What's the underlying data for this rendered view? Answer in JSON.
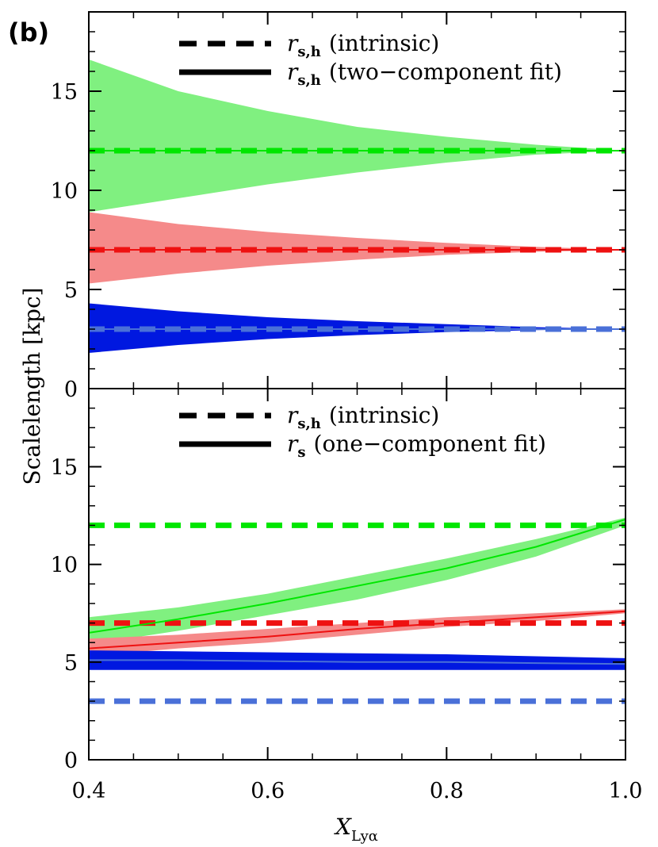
{
  "chart_data": {
    "type": "area",
    "ylabel": "Scalelength [kpc]",
    "xlabel": {
      "main": "X",
      "sub": "Lyα"
    },
    "xlim": [
      0.4,
      1.0
    ],
    "xticks": [
      "0.4",
      "0.6",
      "0.8",
      "1.0"
    ],
    "xtick_values": [
      0.4,
      0.6,
      0.8,
      1.0
    ],
    "colors": {
      "green": "#00e600",
      "red": "#ee1111",
      "blue": "#4a70d8",
      "green_fill": "#80f080",
      "red_fill": "#f58a8a",
      "blue_fill": "#0018e0"
    },
    "panels": [
      {
        "panel_label": "(b)",
        "ylim": [
          0,
          19
        ],
        "yticks": [
          "0",
          "5",
          "10",
          "15"
        ],
        "ytick_values": [
          0,
          5,
          10,
          15
        ],
        "legend": [
          {
            "style": "dashed",
            "symbol": "r",
            "sub": "s,h",
            "text": "(intrinsic)"
          },
          {
            "style": "solid",
            "symbol": "r",
            "sub": "s,h",
            "text": "(two−component fit)"
          }
        ],
        "series": [
          {
            "name": "green",
            "intrinsic": 12,
            "x": [
              0.4,
              0.5,
              0.6,
              0.7,
              0.8,
              0.9,
              1.0
            ],
            "fit": [
              12,
              12,
              12,
              12,
              12,
              12,
              12
            ],
            "lower": [
              8.9,
              9.6,
              10.3,
              10.9,
              11.4,
              11.8,
              12.0
            ],
            "upper": [
              16.6,
              15.0,
              14.0,
              13.2,
              12.7,
              12.3,
              12.0
            ]
          },
          {
            "name": "red",
            "intrinsic": 7,
            "x": [
              0.4,
              0.5,
              0.6,
              0.7,
              0.8,
              0.9,
              1.0
            ],
            "fit": [
              7,
              7,
              7,
              7,
              7,
              7,
              7
            ],
            "lower": [
              5.3,
              5.8,
              6.2,
              6.5,
              6.75,
              6.9,
              7.0
            ],
            "upper": [
              8.9,
              8.3,
              7.9,
              7.6,
              7.35,
              7.15,
              7.0
            ]
          },
          {
            "name": "blue",
            "intrinsic": 3,
            "x": [
              0.4,
              0.5,
              0.6,
              0.7,
              0.8,
              0.9,
              1.0
            ],
            "fit": [
              3,
              3,
              3,
              3,
              3,
              3,
              3
            ],
            "lower": [
              1.8,
              2.2,
              2.5,
              2.7,
              2.85,
              2.95,
              3.0
            ],
            "upper": [
              4.3,
              3.9,
              3.6,
              3.4,
              3.25,
              3.1,
              3.0
            ]
          }
        ]
      },
      {
        "panel_label": "",
        "ylim": [
          0,
          19
        ],
        "yticks": [
          "0",
          "5",
          "10",
          "15"
        ],
        "ytick_values": [
          0,
          5,
          10,
          15
        ],
        "legend": [
          {
            "style": "dashed",
            "symbol": "r",
            "sub": "s,h",
            "text": "(intrinsic)"
          },
          {
            "style": "solid",
            "symbol": "r",
            "sub": "s",
            "text": "(one−component fit)"
          }
        ],
        "series": [
          {
            "name": "green",
            "intrinsic": 12,
            "x": [
              0.4,
              0.5,
              0.6,
              0.7,
              0.8,
              0.9,
              1.0
            ],
            "fit": [
              6.5,
              7.2,
              8.0,
              8.9,
              9.8,
              10.9,
              12.3
            ],
            "lower": [
              5.9,
              6.6,
              7.4,
              8.2,
              9.2,
              10.4,
              12.0
            ],
            "upper": [
              7.3,
              7.8,
              8.5,
              9.4,
              10.3,
              11.3,
              12.4
            ]
          },
          {
            "name": "red",
            "intrinsic": 7,
            "x": [
              0.4,
              0.5,
              0.6,
              0.7,
              0.8,
              0.9,
              1.0
            ],
            "fit": [
              5.7,
              6.0,
              6.3,
              6.7,
              7.0,
              7.3,
              7.6
            ],
            "lower": [
              5.3,
              5.7,
              6.0,
              6.4,
              6.8,
              7.1,
              7.5
            ],
            "upper": [
              6.2,
              6.4,
              6.7,
              7.0,
              7.3,
              7.5,
              7.7
            ]
          },
          {
            "name": "blue",
            "intrinsic": 3,
            "x": [
              0.4,
              0.5,
              0.6,
              0.7,
              0.8,
              0.9,
              1.0
            ],
            "fit": [
              5.1,
              5.1,
              5.05,
              5.0,
              5.0,
              4.95,
              4.9
            ],
            "lower": [
              4.6,
              4.6,
              4.6,
              4.6,
              4.6,
              4.6,
              4.6
            ],
            "upper": [
              5.6,
              5.55,
              5.5,
              5.45,
              5.4,
              5.3,
              5.2
            ]
          }
        ]
      }
    ]
  }
}
